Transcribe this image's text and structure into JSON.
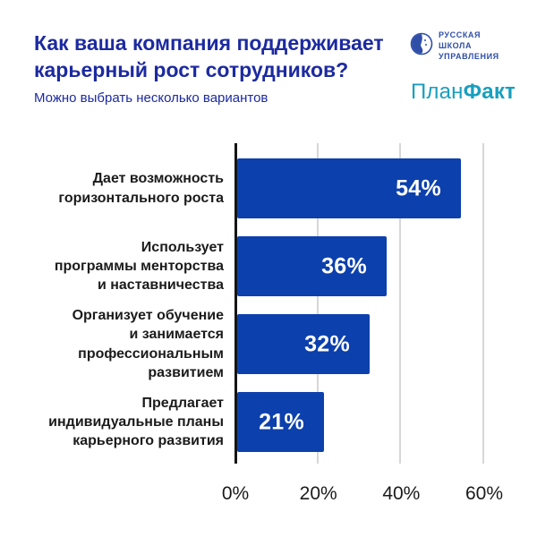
{
  "header": {
    "title": "Как ваша компания поддерживает\nкарьерный рост сотрудников?",
    "subtitle": "Можно выбрать несколько вариантов",
    "title_color": "#1c2aa0"
  },
  "logos": {
    "rsu": {
      "icon": "rsu-globe-icon",
      "lines": [
        "РУССКАЯ",
        "ШКОЛА",
        "УПРАВЛЕНИЯ"
      ],
      "color": "#2f4ea8"
    },
    "planfact": {
      "part1": "План",
      "part2": "Факт",
      "color": "#189fbe"
    }
  },
  "chart_data": {
    "type": "bar",
    "orientation": "horizontal",
    "title": "Как ваша компания поддерживает карьерный рост сотрудников?",
    "subtitle": "Можно выбрать несколько вариантов",
    "categories": [
      "Дает возможность\nгоризонтального роста",
      "Использует\nпрограммы менторства\nи наставничества",
      "Организует обучение\nи занимается\nпрофессиональным\nразвитием",
      "Предлагает\nиндивидуальные планы\nкарьерного развития"
    ],
    "values": [
      54,
      36,
      32,
      21
    ],
    "value_labels": [
      "54%",
      "36%",
      "32%",
      "21%"
    ],
    "x_tick_labels": [
      "0%",
      "20%",
      "40%",
      "60%"
    ],
    "x_tick_values": [
      0,
      20,
      40,
      60
    ],
    "xlim": [
      0,
      67
    ],
    "bar_color": "#0c40ad",
    "value_label_color": "#ffffff",
    "axis_color": "#151515",
    "gridline_color": "#d7d7d7",
    "grid": "vertical",
    "legend": "none"
  }
}
